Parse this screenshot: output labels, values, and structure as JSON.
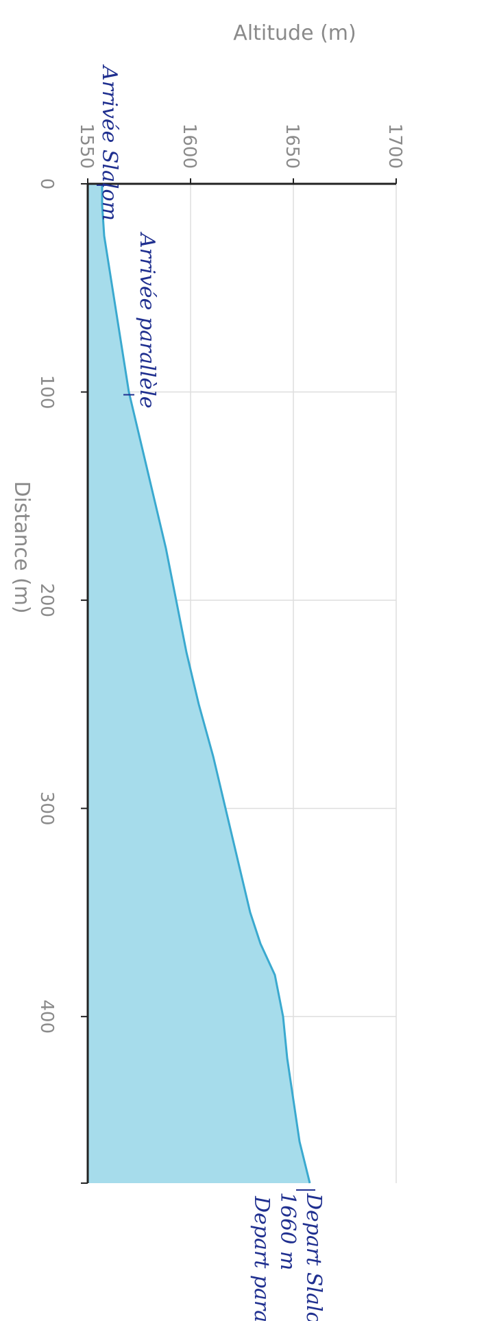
{
  "chart_data": {
    "type": "area",
    "orientation": "rotated-90",
    "xlabel": "Distance (m)",
    "ylabel": "Altitude (m)",
    "xlim": [
      0,
      480
    ],
    "ylim": [
      1550,
      1700
    ],
    "x_ticks": [
      "0",
      "100",
      "200",
      "300",
      "400"
    ],
    "y_ticks": [
      "1550",
      "1600",
      "1650",
      "1700"
    ],
    "grid": true,
    "series": [
      {
        "x": [
          0,
          10,
          25,
          50,
          75,
          100,
          125,
          150,
          175,
          200,
          225,
          250,
          275,
          300,
          325,
          350,
          365,
          380,
          400,
          420,
          440,
          460,
          480
        ],
        "y": [
          1557,
          1557,
          1558,
          1562,
          1566,
          1570,
          1576,
          1582,
          1588,
          1593,
          1598,
          1604,
          1611,
          1617,
          1623,
          1629,
          1634,
          1641,
          1645,
          1647,
          1650,
          1653,
          1658
        ]
      }
    ],
    "colors": {
      "fill": "#a6dceb",
      "line": "#3aa9cf",
      "axis": "#222222",
      "grid": "#dedede",
      "ink": "#1f2f8f"
    },
    "annotations": [
      {
        "text": "Arrivée Slalom",
        "x": 0,
        "y": 1557
      },
      {
        "text": "Arrivée parallèle",
        "x": 100,
        "y": 1570
      },
      {
        "text": "Depart Slalom",
        "x": 480,
        "y": 1658
      },
      {
        "text": "1660 m",
        "x": 480,
        "y": 1658
      },
      {
        "text": "Depart parallèle",
        "x": 480,
        "y": 1658
      }
    ]
  }
}
